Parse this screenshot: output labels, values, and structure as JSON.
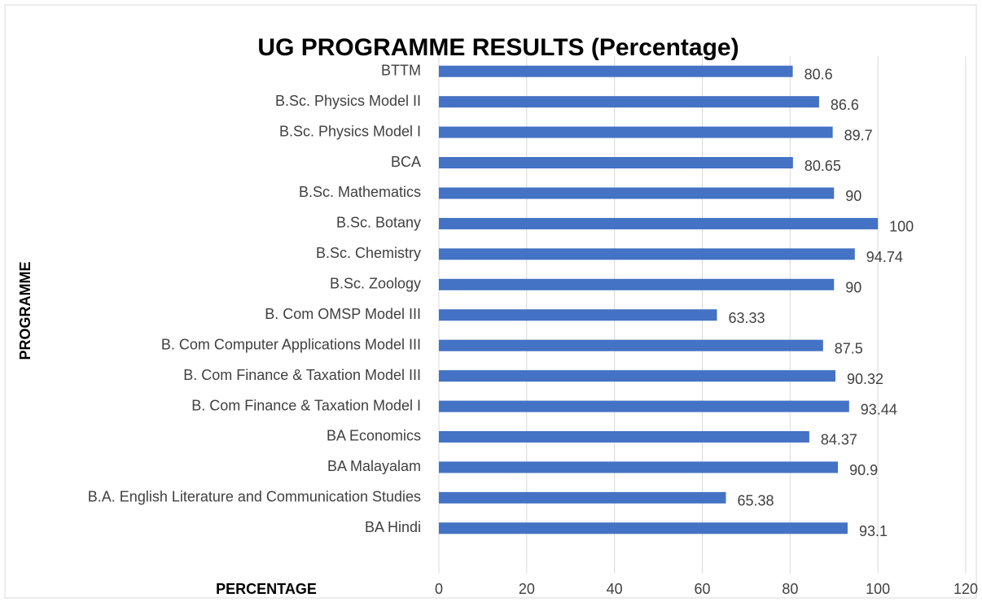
{
  "chart_data": {
    "type": "bar",
    "orientation": "horizontal",
    "title": "UG PROGRAMME RESULTS (Percentage)",
    "x_label": "PERCENTAGE",
    "y_label": "PROGRAMME",
    "categories": [
      "BTTM",
      "B.Sc. Physics Model II",
      "B.Sc. Physics Model I",
      "BCA",
      "B.Sc. Mathematics",
      "B.Sc. Botany",
      "B.Sc. Chemistry",
      "B.Sc. Zoology",
      "B. Com OMSP Model III",
      "B. Com Computer Applications Model III",
      "B. Com Finance & Taxation Model III",
      "B. Com Finance & Taxation Model I",
      "BA Economics",
      "BA Malayalam",
      "B.A. English Literature and Communication Studies",
      "BA Hindi"
    ],
    "values": [
      80.6,
      86.6,
      89.7,
      80.65,
      90,
      100,
      94.74,
      90,
      63.33,
      87.5,
      90.32,
      93.44,
      84.37,
      90.9,
      65.38,
      93.1
    ],
    "color": "#4472c4",
    "xlim": [
      0,
      120
    ],
    "xticks": [
      0,
      20,
      40,
      60,
      80,
      100,
      120
    ],
    "grid": true
  }
}
